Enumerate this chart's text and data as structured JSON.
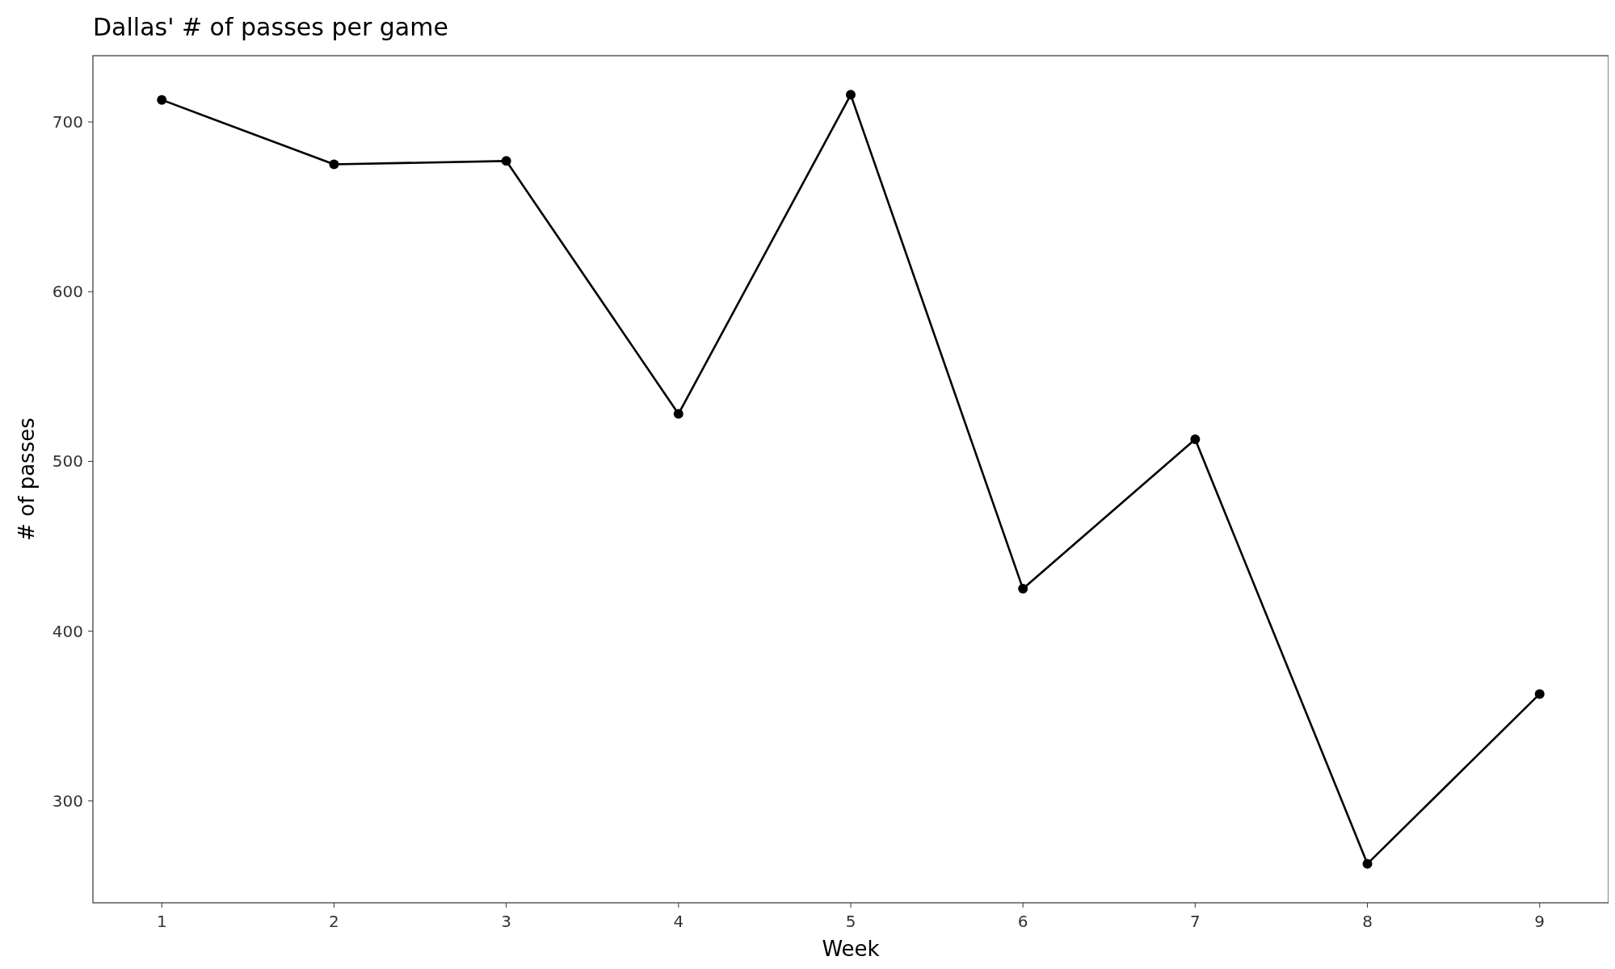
{
  "chart_data": {
    "type": "line",
    "title": "Dallas' # of passes per game",
    "xlabel": "Week",
    "ylabel": "# of passes",
    "x": [
      1,
      2,
      3,
      4,
      5,
      6,
      7,
      8,
      9
    ],
    "series": [
      {
        "color": "#000000",
        "values": [
          713,
          675,
          677,
          528,
          716,
          425,
          513,
          263,
          363
        ]
      }
    ],
    "xlim": [
      0.6,
      9.4
    ],
    "xticks": [
      1,
      2,
      3,
      4,
      5,
      6,
      7,
      8,
      9
    ],
    "ylim": [
      240,
      739
    ],
    "yticks": [
      300,
      400,
      500,
      600,
      700
    ],
    "marker": "circle",
    "line_style": "solid"
  }
}
